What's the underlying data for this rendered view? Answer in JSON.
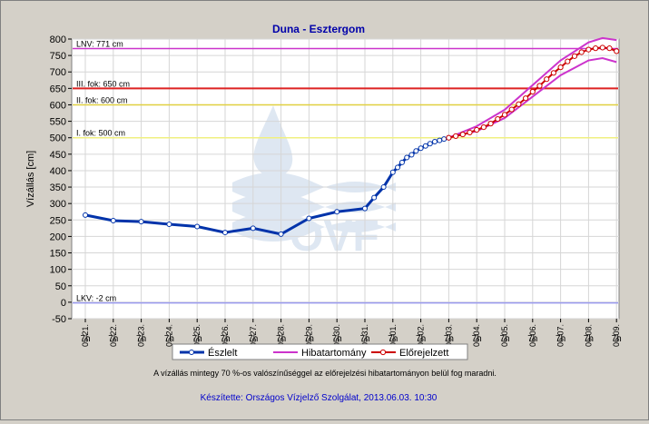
{
  "chart_data": {
    "type": "line",
    "title": "Duna - Esztergom",
    "ylabel": "Vízállás [cm]",
    "xlabel": "",
    "ylim": [
      -50,
      800
    ],
    "yticks": [
      -50,
      0,
      50,
      100,
      150,
      200,
      250,
      300,
      350,
      400,
      450,
      500,
      550,
      600,
      650,
      700,
      750,
      800
    ],
    "x_ticks": [
      {
        "date": "05.21.",
        "hour": "7h"
      },
      {
        "date": "05.22.",
        "hour": "7h"
      },
      {
        "date": "05.23.",
        "hour": "7h"
      },
      {
        "date": "05.24.",
        "hour": "7h"
      },
      {
        "date": "05.25.",
        "hour": "7h"
      },
      {
        "date": "05.26.",
        "hour": "7h"
      },
      {
        "date": "05.27.",
        "hour": "7h"
      },
      {
        "date": "05.28.",
        "hour": "7h"
      },
      {
        "date": "05.29.",
        "hour": "7h"
      },
      {
        "date": "05.30.",
        "hour": "7h"
      },
      {
        "date": "05.31.",
        "hour": "7h"
      },
      {
        "date": "06.01.",
        "hour": "7h"
      },
      {
        "date": "06.02.",
        "hour": "7h"
      },
      {
        "date": "06.03.",
        "hour": "7h"
      },
      {
        "date": "06.04.",
        "hour": "7h"
      },
      {
        "date": "06.05.",
        "hour": "7h"
      },
      {
        "date": "06.06.",
        "hour": "7h"
      },
      {
        "date": "06.07.",
        "hour": "7h"
      },
      {
        "date": "06.08.",
        "hour": "7h"
      },
      {
        "date": "06.09.",
        "hour": "7h"
      }
    ],
    "grid": true,
    "legend_position": "bottom",
    "thresholds": [
      {
        "label": "LNV: 771 cm",
        "value": 771,
        "color": "#cc33cc"
      },
      {
        "label": "III. fok: 650 cm",
        "value": 650,
        "color": "#dd2222"
      },
      {
        "label": "II. fok: 600 cm",
        "value": 600,
        "color": "#e0d040"
      },
      {
        "label": "I. fok: 500 cm",
        "value": 500,
        "color": "#f0f080"
      },
      {
        "label": "LKV: -2 cm",
        "value": -2,
        "color": "#9999ee"
      }
    ],
    "series": [
      {
        "name": "Észlelt",
        "color": "#0033aa",
        "x": [
          0,
          1,
          2,
          3,
          4,
          5,
          6,
          7,
          8,
          9,
          10,
          10.33,
          10.67,
          11,
          11.17,
          11.33,
          11.5,
          11.67,
          11.83,
          12,
          12.17,
          12.33,
          12.5,
          12.67,
          12.83,
          13
        ],
        "values": [
          265,
          248,
          245,
          237,
          230,
          212,
          225,
          207,
          255,
          275,
          285,
          318,
          350,
          395,
          410,
          425,
          440,
          448,
          460,
          468,
          475,
          482,
          488,
          492,
          496,
          500
        ]
      },
      {
        "name": "Hibatartomány",
        "color": "#cc33cc",
        "x": [
          13,
          14,
          15,
          16,
          17,
          18,
          18.5,
          19
        ],
        "upper": [
          500,
          535,
          585,
          660,
          735,
          790,
          803,
          797
        ],
        "lower": [
          500,
          520,
          560,
          625,
          690,
          735,
          742,
          730
        ]
      },
      {
        "name": "Előrejelzett",
        "color": "#cc0000",
        "x": [
          13,
          13.25,
          13.5,
          13.75,
          14,
          14.25,
          14.5,
          14.75,
          15,
          15.25,
          15.5,
          15.75,
          16,
          16.25,
          16.5,
          16.75,
          17,
          17.25,
          17.5,
          17.75,
          18,
          18.25,
          18.5,
          18.75,
          19
        ],
        "values": [
          500,
          505,
          510,
          516,
          524,
          532,
          543,
          557,
          570,
          586,
          602,
          620,
          640,
          658,
          678,
          697,
          714,
          732,
          748,
          760,
          768,
          772,
          774,
          772,
          763
        ]
      }
    ],
    "note": "A vízállás mintegy 70 %-os valószínűséggel az előrejelzési hibatartományon belül fog maradni.",
    "footer": "Készítette: Országos Vízjelző Szolgálat, 2013.06.03. 10:30"
  }
}
